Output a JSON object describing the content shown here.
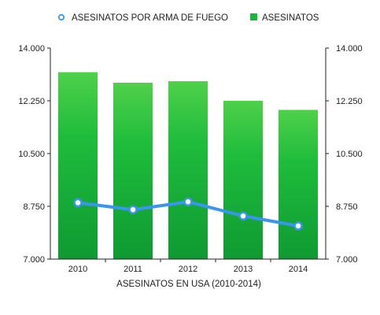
{
  "chart_data": {
    "type": "bar",
    "xlabel": "ASESINATOS EN USA (2010-2014)",
    "legend_position": "top",
    "categories": [
      "2010",
      "2011",
      "2012",
      "2013",
      "2014"
    ],
    "ylim": [
      7000,
      14000
    ],
    "yticks": [
      7000,
      8750,
      10500,
      12250,
      14000
    ],
    "ytick_labels": [
      "7.000",
      "8.750",
      "10.500",
      "12.250",
      "14.000"
    ],
    "grid": false,
    "series": [
      {
        "name": "ASESINATOS",
        "type": "bar",
        "color": "#1cb43a",
        "values": [
          13200,
          12850,
          12900,
          12250,
          11950
        ]
      },
      {
        "name": "ASESINATOS POR ARMA DE FUEGO",
        "type": "line",
        "color": "#3a95f0",
        "values": [
          8870,
          8640,
          8900,
          8430,
          8100
        ]
      }
    ]
  }
}
